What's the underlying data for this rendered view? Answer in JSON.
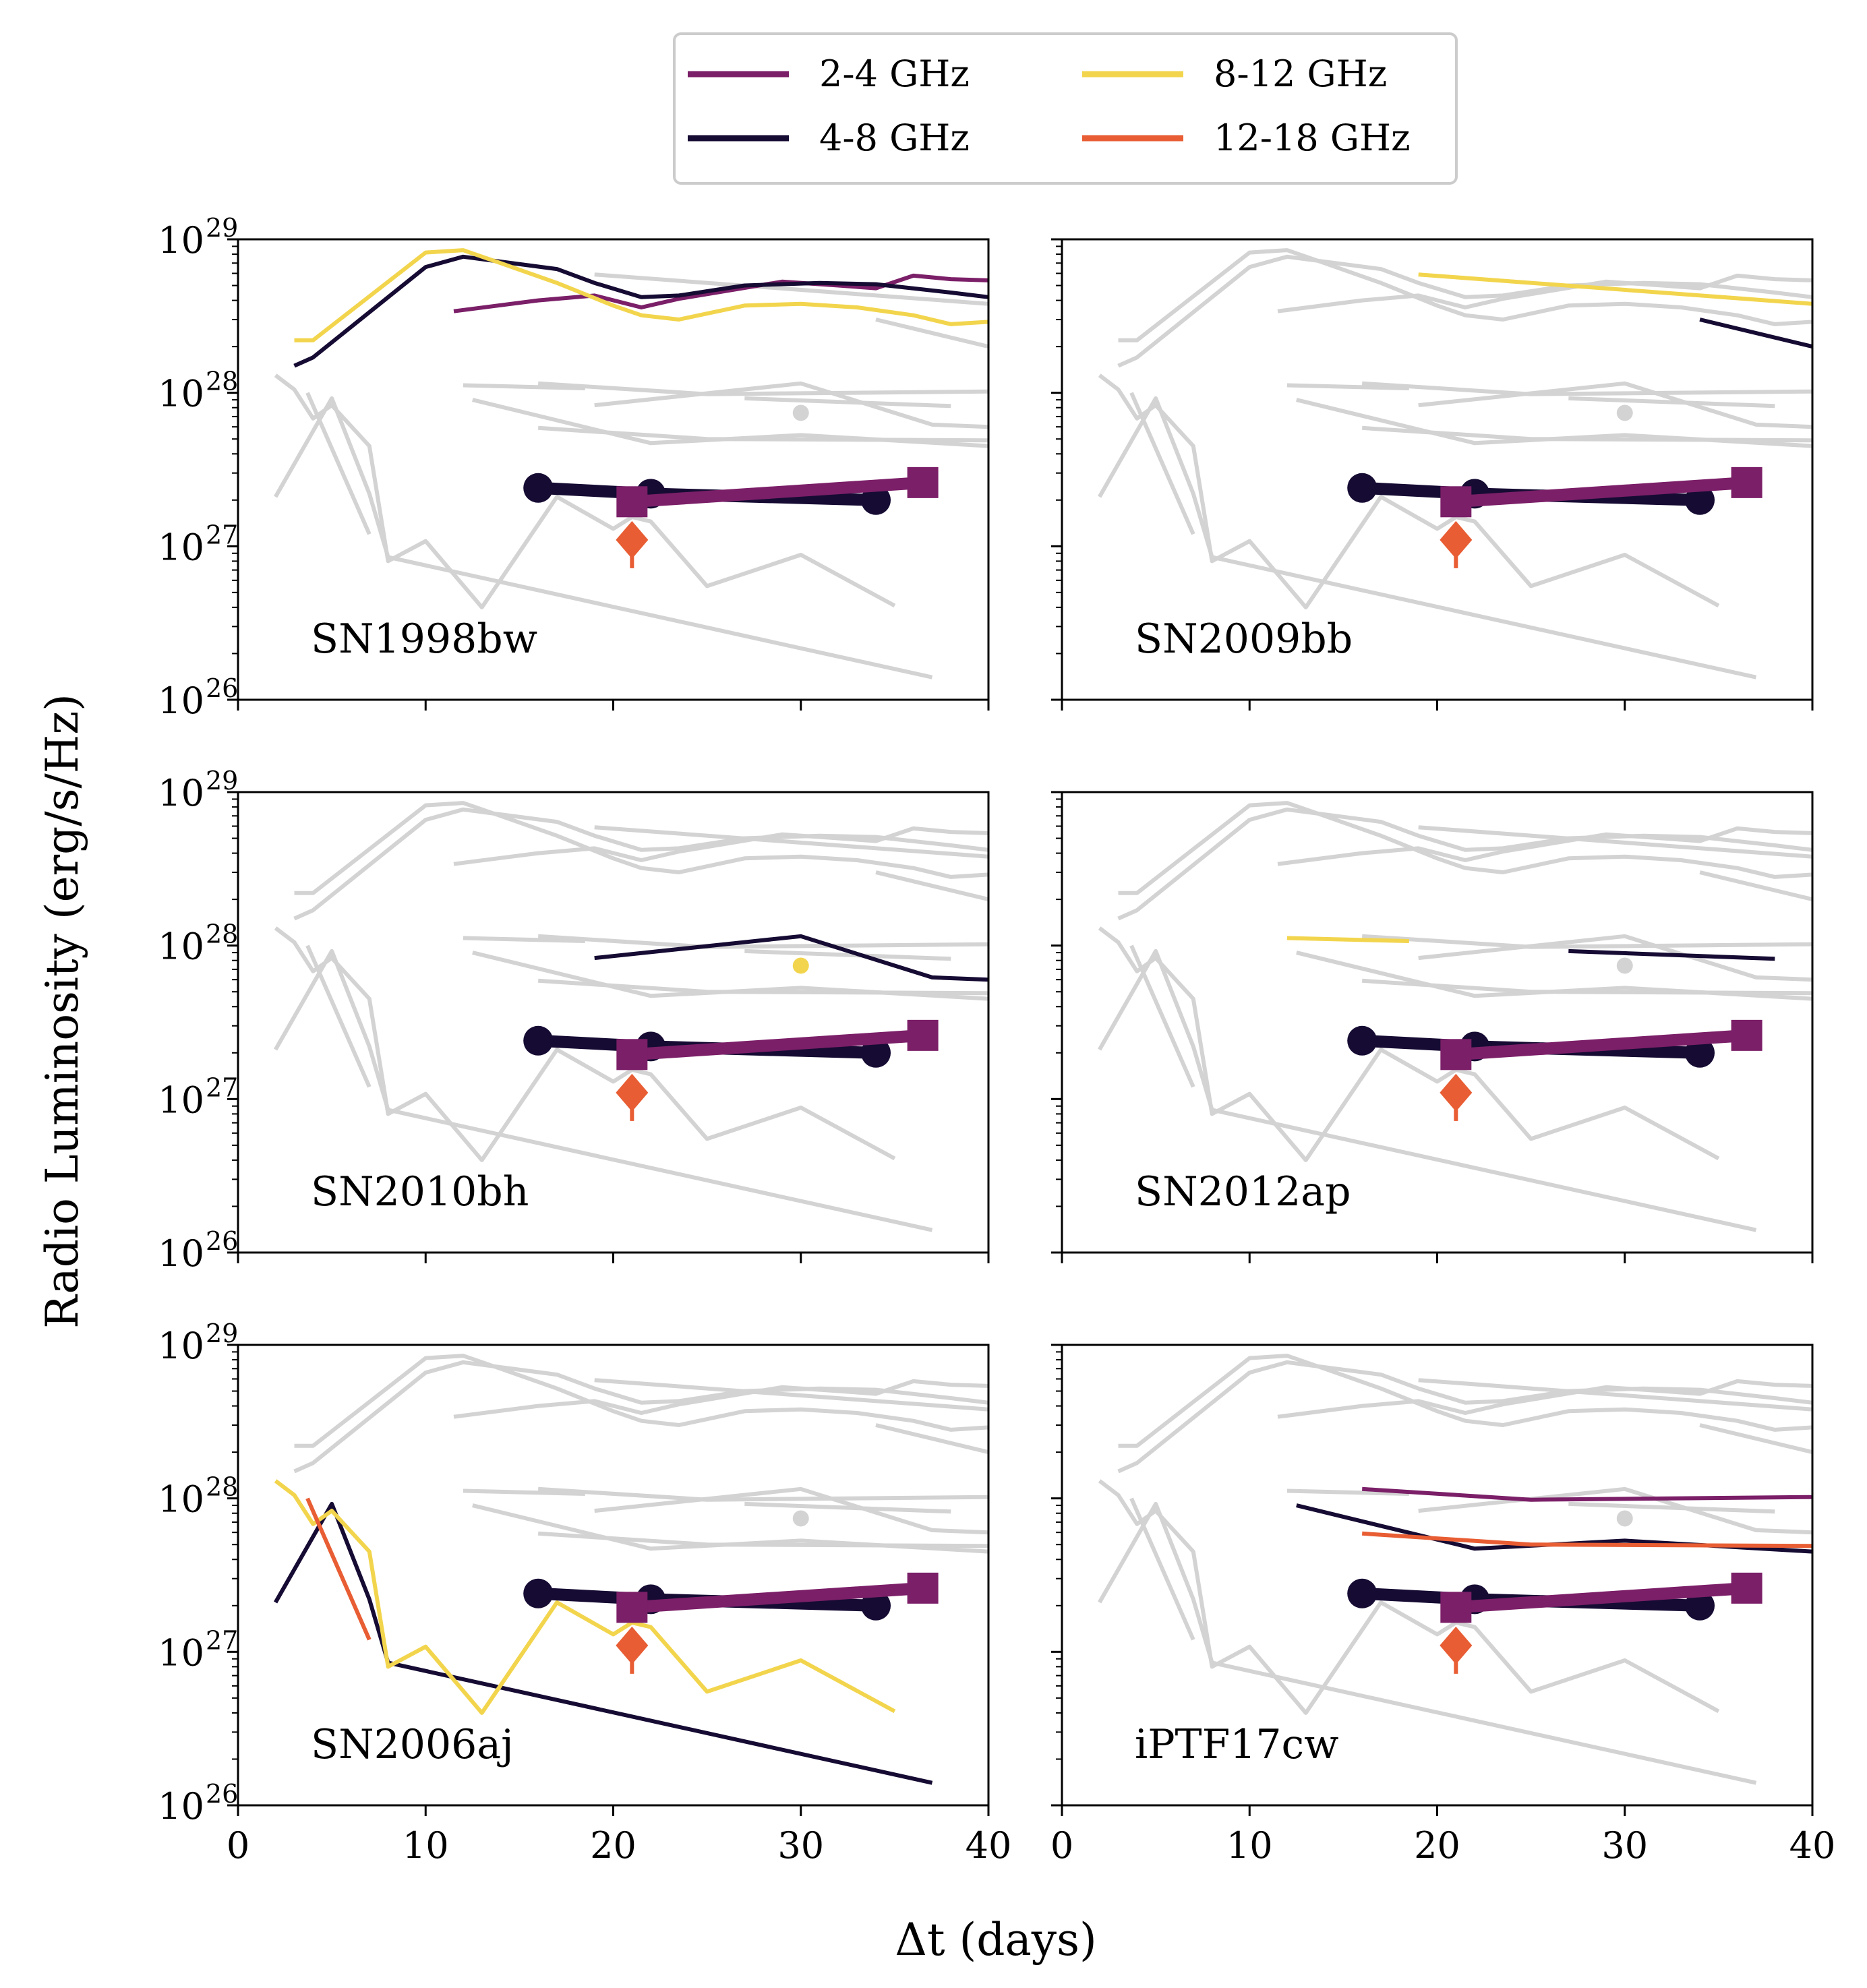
{
  "colors": {
    "band_2_4": "#7b1f68",
    "band_4_8": "#160b33",
    "band_8_12": "#f2d54d",
    "band_12_18": "#e85d33",
    "background": "#d3d3d3"
  },
  "legend": {
    "entries": [
      {
        "label": "2-4 GHz",
        "color": "#7b1f68"
      },
      {
        "label": "4-8 GHz",
        "color": "#160b33"
      },
      {
        "label": "8-12 GHz",
        "color": "#f2d54d"
      },
      {
        "label": "12-18 GHz",
        "color": "#e85d33"
      }
    ]
  },
  "chart_data": {
    "type": "line",
    "title": "",
    "xlabel": "Δt (days)",
    "ylabel": "Radio Luminosity (erg/s/Hz)",
    "xlim": [
      0,
      40
    ],
    "ylim": [
      1e+26,
      1e+29
    ],
    "yscale": "log",
    "x_ticks": [
      "0",
      "10",
      "20",
      "30",
      "40"
    ],
    "y_ticks": [
      {
        "base": "10",
        "exp": "29"
      },
      {
        "base": "10",
        "exp": "28"
      },
      {
        "base": "10",
        "exp": "27"
      },
      {
        "base": "10",
        "exp": "26"
      }
    ],
    "target": {
      "name": "target",
      "series": [
        {
          "band": "4-8 GHz",
          "marker": "circle",
          "x": [
            16,
            22,
            34
          ],
          "y": [
            2.4e+27,
            2.2e+27,
            2e+27
          ]
        },
        {
          "band": "2-4 GHz",
          "marker": "square",
          "x": [
            21,
            36.5
          ],
          "y": [
            1.95e+27,
            2.6e+27
          ]
        },
        {
          "band": "12-18 GHz",
          "marker": "diamond",
          "x": [
            21
          ],
          "y": [
            1.1e+27
          ]
        }
      ]
    },
    "panels": [
      {
        "label": "SN1998bw",
        "series": [
          {
            "band": "2-4 GHz",
            "x": [
              11.5,
              16,
              19,
              21.5,
              23.5,
              29,
              32,
              34,
              36,
              38,
              40
            ],
            "y": [
              3.4e+28,
              4e+28,
              4.3e+28,
              3.6e+28,
              4.1e+28,
              5.3e+28,
              5e+28,
              4.8e+28,
              5.8e+28,
              5.5e+28,
              5.4e+28
            ]
          },
          {
            "band": "4-8 GHz",
            "x": [
              3,
              4,
              10,
              12,
              17,
              19,
              21.5,
              23.5,
              27,
              31,
              34,
              38,
              40
            ],
            "y": [
              1.5e+28,
              1.7e+28,
              6.6e+28,
              7.7e+28,
              6.4e+28,
              5.2e+28,
              4.2e+28,
              4.3e+28,
              5e+28,
              5.2e+28,
              5.1e+28,
              4.5e+28,
              4.2e+28
            ]
          },
          {
            "band": "8-12 GHz",
            "x": [
              3,
              4,
              10,
              12,
              14,
              17,
              20,
              21.5,
              23.5,
              27,
              30,
              33,
              36,
              38,
              40
            ],
            "y": [
              2.2e+28,
              2.2e+28,
              8.2e+28,
              8.5e+28,
              7e+28,
              5.2e+28,
              3.7e+28,
              3.2e+28,
              3e+28,
              3.7e+28,
              3.8e+28,
              3.6e+28,
              3.2e+28,
              2.8e+28,
              2.9e+28
            ]
          }
        ]
      },
      {
        "label": "SN2009bb",
        "series": [
          {
            "band": "8-12 GHz",
            "x": [
              19,
              40
            ],
            "y": [
              5.9e+28,
              3.8e+28
            ]
          },
          {
            "band": "4-8 GHz",
            "x": [
              34,
              40
            ],
            "y": [
              3e+28,
              2e+28
            ]
          }
        ]
      },
      {
        "label": "SN2010bh",
        "series": [
          {
            "band": "4-8 GHz",
            "x": [
              19,
              30,
              37,
              40
            ],
            "y": [
              8.3e+27,
              1.15e+28,
              6.2e+27,
              6e+27
            ]
          },
          {
            "band": "8-12 GHz",
            "marker": "dot",
            "x": [
              30
            ],
            "y": [
              7.4e+27
            ]
          }
        ]
      },
      {
        "label": "SN2012ap",
        "series": [
          {
            "band": "8-12 GHz",
            "x": [
              12,
              18.5
            ],
            "y": [
              1.12e+28,
              1.07e+28
            ]
          },
          {
            "band": "4-8 GHz",
            "x": [
              27,
              38
            ],
            "y": [
              9.2e+27,
              8.2e+27
            ]
          }
        ]
      },
      {
        "label": "SN2006aj",
        "series": [
          {
            "band": "4-8 GHz",
            "x": [
              2,
              5,
              7,
              8,
              37
            ],
            "y": [
              2.1e+27,
              9.2e+27,
              2.2e+27,
              8.5e+26,
              1.4e+26
            ]
          },
          {
            "band": "8-12 GHz",
            "x": [
              2,
              3,
              4,
              5,
              7,
              8,
              10,
              13,
              17,
              20,
              21,
              22,
              25,
              30,
              35
            ],
            "y": [
              1.3e+28,
              1.05e+28,
              6.8e+27,
              8.3e+27,
              4.5e+27,
              8e+26,
              1.08e+27,
              4e+26,
              2.1e+27,
              1.3e+27,
              1.55e+27,
              1.45e+27,
              5.5e+26,
              8.8e+26,
              4.1e+26
            ]
          },
          {
            "band": "12-18 GHz",
            "x": [
              3.7,
              7
            ],
            "y": [
              1e+28,
              1.2e+27
            ]
          }
        ]
      },
      {
        "label": "iPTF17cw",
        "series": [
          {
            "band": "2-4 GHz",
            "x": [
              16,
              25,
              40
            ],
            "y": [
              1.15e+28,
              9.8e+27,
              1.02e+28
            ]
          },
          {
            "band": "4-8 GHz",
            "x": [
              12.5,
              22,
              30,
              40
            ],
            "y": [
              9e+27,
              4.7e+27,
              5.3e+27,
              4.5e+27
            ]
          },
          {
            "band": "12-18 GHz",
            "x": [
              16,
              25,
              40
            ],
            "y": [
              5.9e+27,
              5e+27,
              4.9e+27
            ]
          }
        ]
      }
    ]
  }
}
